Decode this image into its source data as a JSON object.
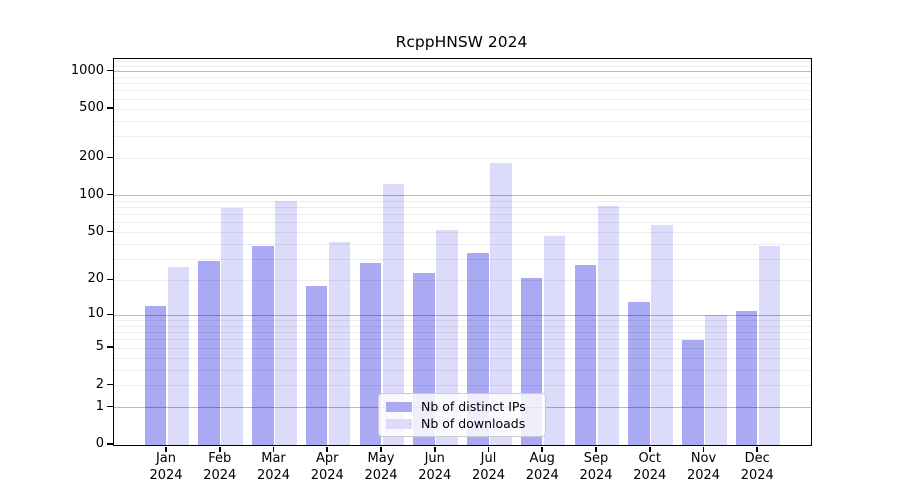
{
  "chart_data": {
    "type": "bar",
    "title": "RcppHNSW 2024",
    "xlabel": "",
    "ylabel": "",
    "year_label": "2024",
    "categories": [
      "Jan",
      "Feb",
      "Mar",
      "Apr",
      "May",
      "Jun",
      "Jul",
      "Aug",
      "Sep",
      "Oct",
      "Nov",
      "Dec"
    ],
    "series": [
      {
        "name": "Nb of distinct IPs",
        "color": "#a9a9f4",
        "values": [
          12,
          29,
          39,
          18,
          28,
          23,
          34,
          21,
          27,
          13,
          6,
          11
        ]
      },
      {
        "name": "Nb of downloads",
        "color": "#dcdcfa",
        "values": [
          26,
          80,
          90,
          42,
          125,
          52,
          185,
          47,
          83,
          58,
          10,
          39
        ]
      }
    ],
    "y_scale": "log1p",
    "ylim": [
      0,
      1265
    ],
    "y_tick_labels": [
      0,
      1,
      2,
      5,
      10,
      20,
      50,
      100,
      200,
      500,
      1000
    ],
    "y_major_gridlines": [
      1,
      10,
      100,
      1000
    ],
    "grid": true,
    "legend_position": "lower center"
  }
}
